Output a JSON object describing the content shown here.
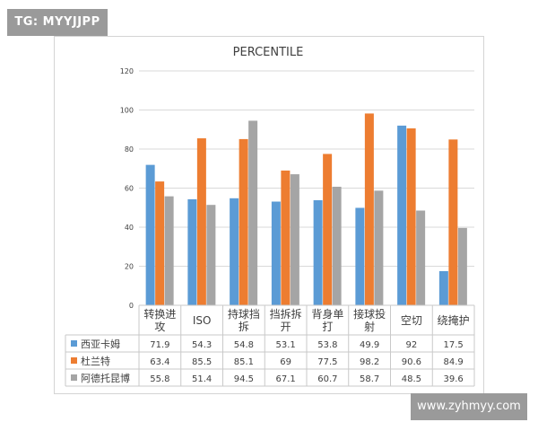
{
  "watermark_top": "TG: MYYJJPP",
  "watermark_bottom": "www.zyhmyy.com",
  "colors": {
    "s0": "#5b9bd5",
    "s1": "#ed7d31",
    "s2": "#a5a5a5",
    "grid": "#d9d9d9",
    "text": "#404040"
  },
  "chart_data": {
    "type": "bar",
    "title": "PERCENTILE",
    "categories": [
      [
        "转换进",
        "攻"
      ],
      [
        "ISO"
      ],
      [
        "持球挡",
        "拆"
      ],
      [
        "挡拆拆",
        "开"
      ],
      [
        "背身单",
        "打"
      ],
      [
        "接球投",
        "射"
      ],
      [
        "空切"
      ],
      [
        "绕掩护"
      ]
    ],
    "series": [
      {
        "name": "西亚卡姆",
        "color": "#5b9bd5",
        "values": [
          71.9,
          54.3,
          54.8,
          53.1,
          53.8,
          49.9,
          92,
          17.5
        ]
      },
      {
        "name": "杜兰特",
        "color": "#ed7d31",
        "values": [
          63.4,
          85.5,
          85.1,
          69,
          77.5,
          98.2,
          90.6,
          84.9
        ]
      },
      {
        "name": "阿德托昆博",
        "color": "#a5a5a5",
        "values": [
          55.8,
          51.4,
          94.5,
          67.1,
          60.7,
          58.7,
          48.5,
          39.6
        ]
      }
    ],
    "yticks": [
      0,
      20,
      40,
      60,
      80,
      100,
      120
    ],
    "ylim": [
      0,
      120
    ],
    "xlabel": "",
    "ylabel": "",
    "legend": "data-table"
  }
}
